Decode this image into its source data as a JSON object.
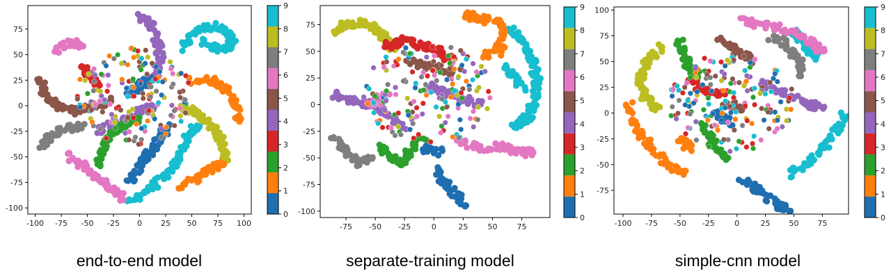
{
  "chart_data": [
    {
      "type": "scatter",
      "title": "end-to-end model",
      "xlim": [
        -107,
        107
      ],
      "ylim": [
        -106,
        98
      ],
      "xticks": [
        -100,
        -75,
        -50,
        -25,
        0,
        25,
        50,
        75,
        100
      ],
      "yticks": [
        -100,
        -75,
        -50,
        -25,
        0,
        25,
        50,
        75
      ],
      "colorbar": {
        "ticks": [
          0,
          1,
          2,
          3,
          4,
          5,
          6,
          7,
          8,
          9
        ]
      },
      "clusters": [
        {
          "label": 9,
          "points": [
            [
              40,
              55
            ],
            [
              55,
              75
            ],
            [
              75,
              78
            ],
            [
              85,
              70
            ],
            [
              90,
              60
            ],
            [
              80,
              55
            ],
            [
              60,
              62
            ]
          ]
        },
        {
          "label": 9,
          "points": [
            [
              -10,
              -95
            ],
            [
              10,
              -80
            ],
            [
              30,
              -65
            ],
            [
              40,
              -45
            ],
            [
              48,
              -28
            ],
            [
              55,
              -20
            ]
          ]
        },
        {
          "label": 8,
          "points": [
            [
              40,
              0
            ],
            [
              60,
              -10
            ],
            [
              75,
              -25
            ],
            [
              80,
              -40
            ],
            [
              82,
              -55
            ]
          ]
        },
        {
          "label": 1,
          "points": [
            [
              50,
              25
            ],
            [
              70,
              25
            ],
            [
              85,
              15
            ],
            [
              92,
              0
            ],
            [
              95,
              -15
            ]
          ]
        },
        {
          "label": 1,
          "points": [
            [
              38,
              -80
            ],
            [
              55,
              -70
            ],
            [
              68,
              -62
            ],
            [
              78,
              -55
            ]
          ]
        },
        {
          "label": 6,
          "points": [
            [
              -70,
              -48
            ],
            [
              -55,
              -58
            ],
            [
              -40,
              -70
            ],
            [
              -25,
              -82
            ],
            [
              -15,
              -90
            ]
          ]
        },
        {
          "label": 6,
          "points": [
            [
              -80,
              55
            ],
            [
              -65,
              62
            ],
            [
              -55,
              60
            ]
          ]
        },
        {
          "label": 7,
          "points": [
            [
              -95,
              -40
            ],
            [
              -85,
              -30
            ],
            [
              -70,
              -22
            ],
            [
              -55,
              -20
            ]
          ]
        },
        {
          "label": 5,
          "points": [
            [
              -95,
              25
            ],
            [
              -90,
              10
            ],
            [
              -80,
              0
            ],
            [
              -60,
              -5
            ],
            [
              -40,
              0
            ],
            [
              -30,
              5
            ]
          ]
        },
        {
          "label": 4,
          "points": [
            [
              0,
              88
            ],
            [
              10,
              80
            ],
            [
              18,
              60
            ],
            [
              20,
              45
            ],
            [
              15,
              30
            ],
            [
              5,
              20
            ]
          ]
        },
        {
          "label": 4,
          "points": [
            [
              -40,
              -25
            ],
            [
              -20,
              -15
            ],
            [
              0,
              -5
            ],
            [
              15,
              -2
            ]
          ]
        },
        {
          "label": 3,
          "points": [
            [
              -55,
              40
            ],
            [
              -48,
              30
            ],
            [
              -40,
              20
            ]
          ]
        },
        {
          "label": 2,
          "points": [
            [
              -40,
              -60
            ],
            [
              -35,
              -40
            ],
            [
              -25,
              -25
            ],
            [
              -15,
              -20
            ],
            [
              0,
              -10
            ]
          ]
        },
        {
          "label": 0,
          "points": [
            [
              -10,
              -75
            ],
            [
              0,
              -60
            ],
            [
              10,
              -45
            ],
            [
              20,
              -30
            ],
            [
              28,
              -20
            ]
          ]
        },
        {
          "label": 0,
          "points": [
            [
              -10,
              10
            ],
            [
              0,
              20
            ],
            [
              10,
              25
            ]
          ]
        }
      ]
    },
    {
      "type": "scatter",
      "title": "separate-training model",
      "xlim": [
        -97,
        99
      ],
      "ylim": [
        -106,
        93
      ],
      "xticks": [
        -75,
        -50,
        -25,
        0,
        25,
        50,
        75
      ],
      "yticks": [
        -100,
        -75,
        -50,
        -25,
        0,
        25,
        50,
        75
      ],
      "colorbar": {
        "ticks": [
          0,
          1,
          2,
          3,
          4,
          5,
          6,
          7,
          8,
          9
        ]
      },
      "clusters": [
        {
          "label": 9,
          "points": [
            [
              65,
              70
            ],
            [
              75,
              60
            ],
            [
              85,
              40
            ],
            [
              88,
              20
            ],
            [
              85,
              0
            ],
            [
              78,
              -15
            ],
            [
              68,
              -20
            ]
          ]
        },
        {
          "label": 9,
          "points": [
            [
              60,
              35
            ],
            [
              70,
              25
            ],
            [
              75,
              15
            ]
          ]
        },
        {
          "label": 8,
          "points": [
            [
              -85,
              70
            ],
            [
              -75,
              75
            ],
            [
              -60,
              78
            ],
            [
              -50,
              70
            ],
            [
              -40,
              60
            ],
            [
              -35,
              50
            ]
          ]
        },
        {
          "label": 1,
          "points": [
            [
              25,
              85
            ],
            [
              40,
              80
            ],
            [
              55,
              78
            ],
            [
              60,
              65
            ],
            [
              55,
              50
            ],
            [
              40,
              45
            ]
          ]
        },
        {
          "label": 7,
          "points": [
            [
              -85,
              -30
            ],
            [
              -75,
              -45
            ],
            [
              -65,
              -55
            ],
            [
              -50,
              -50
            ]
          ]
        },
        {
          "label": 4,
          "points": [
            [
              -85,
              10
            ],
            [
              -70,
              5
            ],
            [
              -55,
              0
            ],
            [
              -40,
              -10
            ],
            [
              -25,
              -20
            ]
          ]
        },
        {
          "label": 4,
          "points": [
            [
              -5,
              20
            ],
            [
              10,
              10
            ],
            [
              25,
              5
            ],
            [
              40,
              0
            ]
          ]
        },
        {
          "label": 6,
          "points": [
            [
              20,
              -35
            ],
            [
              40,
              -40
            ],
            [
              60,
              -40
            ],
            [
              75,
              -45
            ],
            [
              85,
              -45
            ]
          ]
        },
        {
          "label": 6,
          "points": [
            [
              -55,
              0
            ],
            [
              -40,
              10
            ]
          ]
        },
        {
          "label": 3,
          "points": [
            [
              -40,
              55
            ],
            [
              -25,
              60
            ],
            [
              -10,
              55
            ],
            [
              5,
              50
            ],
            [
              15,
              40
            ]
          ]
        },
        {
          "label": 5,
          "points": [
            [
              -20,
              40
            ],
            [
              0,
              35
            ],
            [
              20,
              30
            ]
          ]
        },
        {
          "label": 2,
          "points": [
            [
              -45,
              -40
            ],
            [
              -30,
              -55
            ],
            [
              -20,
              -45
            ],
            [
              -10,
              -30
            ]
          ]
        },
        {
          "label": 0,
          "points": [
            [
              0,
              -60
            ],
            [
              10,
              -75
            ],
            [
              20,
              -85
            ],
            [
              25,
              -95
            ]
          ]
        },
        {
          "label": 0,
          "points": [
            [
              -10,
              -40
            ],
            [
              5,
              -45
            ]
          ]
        }
      ]
    },
    {
      "type": "scatter",
      "title": "simple-cnn model",
      "xlim": [
        -108,
        98
      ],
      "ylim": [
        -98,
        103
      ],
      "xticks": [
        -100,
        -75,
        -50,
        -25,
        0,
        25,
        50,
        75
      ],
      "yticks": [
        -75,
        -50,
        -25,
        0,
        25,
        50,
        75,
        100
      ],
      "colorbar": {
        "ticks": [
          0,
          1,
          2,
          3,
          4,
          5,
          6,
          7,
          8,
          9
        ]
      },
      "clusters": [
        {
          "label": 9,
          "points": [
            [
              95,
              0
            ],
            [
              85,
              -20
            ],
            [
              75,
              -35
            ],
            [
              60,
              -50
            ],
            [
              45,
              -60
            ]
          ]
        },
        {
          "label": 9,
          "points": [
            [
              50,
              80
            ],
            [
              60,
              65
            ],
            [
              70,
              55
            ]
          ]
        },
        {
          "label": 8,
          "points": [
            [
              -65,
              65
            ],
            [
              -80,
              50
            ],
            [
              -85,
              30
            ],
            [
              -80,
              15
            ],
            [
              -70,
              5
            ]
          ]
        },
        {
          "label": 1,
          "points": [
            [
              -95,
              10
            ],
            [
              -88,
              -15
            ],
            [
              -78,
              -30
            ],
            [
              -60,
              -50
            ],
            [
              -45,
              -60
            ]
          ]
        },
        {
          "label": 1,
          "points": [
            [
              -50,
              -25
            ],
            [
              -40,
              -35
            ]
          ]
        },
        {
          "label": 6,
          "points": [
            [
              5,
              90
            ],
            [
              25,
              85
            ],
            [
              45,
              80
            ],
            [
              65,
              70
            ],
            [
              75,
              60
            ]
          ]
        },
        {
          "label": 7,
          "points": [
            [
              30,
              75
            ],
            [
              45,
              65
            ],
            [
              55,
              50
            ],
            [
              58,
              35
            ]
          ]
        },
        {
          "label": 2,
          "points": [
            [
              -50,
              70
            ],
            [
              -45,
              50
            ],
            [
              -35,
              35
            ]
          ]
        },
        {
          "label": 2,
          "points": [
            [
              -30,
              -10
            ],
            [
              -20,
              -30
            ],
            [
              -10,
              -45
            ]
          ]
        },
        {
          "label": 5,
          "points": [
            [
              -15,
              70
            ],
            [
              0,
              60
            ],
            [
              15,
              50
            ]
          ]
        },
        {
          "label": 5,
          "points": [
            [
              -10,
              10
            ],
            [
              5,
              5
            ]
          ]
        },
        {
          "label": 4,
          "points": [
            [
              20,
              30
            ],
            [
              40,
              20
            ],
            [
              60,
              10
            ],
            [
              75,
              5
            ]
          ]
        },
        {
          "label": 3,
          "points": [
            [
              -40,
              30
            ],
            [
              -25,
              20
            ],
            [
              -10,
              20
            ]
          ]
        },
        {
          "label": 0,
          "points": [
            [
              5,
              -65
            ],
            [
              20,
              -75
            ],
            [
              35,
              -90
            ],
            [
              45,
              -92
            ]
          ]
        },
        {
          "label": 0,
          "points": [
            [
              -20,
              0
            ],
            [
              -5,
              -10
            ]
          ]
        }
      ]
    }
  ],
  "palette": [
    "#1f6fb0",
    "#ff7f0e",
    "#2ca02c",
    "#d62728",
    "#9467bd",
    "#8c564b",
    "#e377c2",
    "#7f7f7f",
    "#bcbd22",
    "#17becf"
  ],
  "captions": {
    "left": "end-to-end model",
    "middle": "separate-training model",
    "right": "simple-cnn model"
  }
}
